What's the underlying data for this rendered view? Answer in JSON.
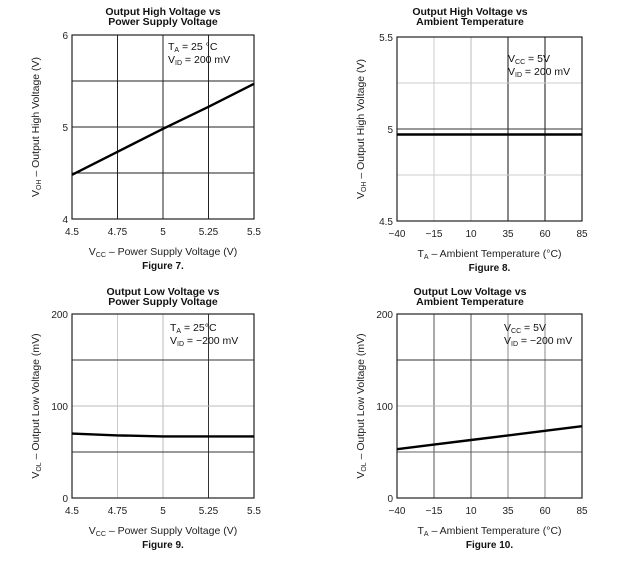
{
  "chart_data": [
    {
      "type": "line",
      "figure_label": "Figure 7.",
      "title": [
        "Output High Voltage vs",
        "Power Supply Voltage"
      ],
      "xlabel": {
        "main": "V",
        "sub": "CC",
        "rest": " – Power Supply Voltage (V)"
      },
      "ylabel": {
        "main": "V",
        "sub": "OH",
        "rest": " – Output High Voltage (V)"
      },
      "xlim": [
        4.5,
        5.5
      ],
      "ylim": [
        4,
        6
      ],
      "xticks": [
        4.5,
        4.75,
        5,
        5.25,
        5.5
      ],
      "xtick_labels": [
        "4.5",
        "4.75",
        "5",
        "5.25",
        "5.5"
      ],
      "yticks": [
        4,
        5,
        6
      ],
      "ytick_labels": [
        "4",
        "5",
        "6"
      ],
      "grid": true,
      "annotations": [
        {
          "main": "T",
          "sub": "A",
          "rest": " = 25 °C"
        },
        {
          "main": "V",
          "sub": "ID",
          "rest": " = 200 mV"
        }
      ],
      "series": [
        {
          "name": "VOH",
          "x": [
            4.5,
            4.75,
            5,
            5.25,
            5.5
          ],
          "y": [
            4.48,
            4.73,
            4.98,
            5.22,
            5.47
          ]
        }
      ]
    },
    {
      "type": "line",
      "figure_label": "Figure 8.",
      "title": [
        "Output High Voltage vs",
        "Ambient Temperature"
      ],
      "xlabel": {
        "main": "T",
        "sub": "A",
        "rest": " – Ambient Temperature (°C)"
      },
      "ylabel": {
        "main": "V",
        "sub": "OH",
        "rest": " – Output High Voltage (V)"
      },
      "xlim": [
        -40,
        85
      ],
      "ylim": [
        4.5,
        5.5
      ],
      "xticks": [
        -40,
        -15,
        10,
        35,
        60,
        85
      ],
      "xtick_labels": [
        "−40",
        "−15",
        "10",
        "35",
        "60",
        "85"
      ],
      "yticks": [
        4.5,
        5,
        5.5
      ],
      "ytick_labels": [
        "4.5",
        "5",
        "5.5"
      ],
      "grid": true,
      "annotations": [
        {
          "main": "V",
          "sub": "CC",
          "rest": " = 5V"
        },
        {
          "main": "V",
          "sub": "ID",
          "rest": " = 200 mV"
        }
      ],
      "series": [
        {
          "name": "VOH",
          "x": [
            -40,
            85
          ],
          "y": [
            4.97,
            4.97
          ]
        }
      ]
    },
    {
      "type": "line",
      "figure_label": "Figure 9.",
      "title": [
        "Output Low Voltage vs",
        "Power Supply Voltage"
      ],
      "xlabel": {
        "main": "V",
        "sub": "CC",
        "rest": " – Power Supply Voltage (V)"
      },
      "ylabel": {
        "main": "V",
        "sub": "OL",
        "rest": " – Output Low Voltage (mV)"
      },
      "xlim": [
        4.5,
        5.5
      ],
      "ylim": [
        0,
        200
      ],
      "xticks": [
        4.5,
        4.75,
        5,
        5.25,
        5.5
      ],
      "xtick_labels": [
        "4.5",
        "4.75",
        "5",
        "5.25",
        "5.5"
      ],
      "yticks": [
        0,
        100,
        200
      ],
      "ytick_labels": [
        "0",
        "100",
        "200"
      ],
      "grid": true,
      "annotations": [
        {
          "main": "T",
          "sub": "A",
          "rest": " = 25°C"
        },
        {
          "main": "V",
          "sub": "ID",
          "rest": " = −200 mV"
        }
      ],
      "series": [
        {
          "name": "VOL",
          "x": [
            4.5,
            4.75,
            5,
            5.25,
            5.5
          ],
          "y": [
            70,
            68,
            67,
            67,
            67
          ]
        }
      ]
    },
    {
      "type": "line",
      "figure_label": "Figure 10.",
      "title": [
        "Output Low Voltage vs",
        "Ambient Temperature"
      ],
      "xlabel": {
        "main": "T",
        "sub": "A",
        "rest": " – Ambient Temperature (°C)"
      },
      "ylabel": {
        "main": "V",
        "sub": "OL",
        "rest": " – Output Low Voltage (mV)"
      },
      "xlim": [
        -40,
        85
      ],
      "ylim": [
        0,
        200
      ],
      "xticks": [
        -40,
        -15,
        10,
        35,
        60,
        85
      ],
      "xtick_labels": [
        "−40",
        "−15",
        "10",
        "35",
        "60",
        "85"
      ],
      "yticks": [
        0,
        100,
        200
      ],
      "ytick_labels": [
        "0",
        "100",
        "200"
      ],
      "grid": true,
      "annotations": [
        {
          "main": "V",
          "sub": "CC",
          "rest": " = 5V"
        },
        {
          "main": "V",
          "sub": "ID",
          "rest": " = −200 mV"
        }
      ],
      "series": [
        {
          "name": "VOL",
          "x": [
            -40,
            -15,
            10,
            35,
            60,
            85
          ],
          "y": [
            53,
            58,
            63,
            68,
            73,
            78
          ]
        }
      ]
    }
  ]
}
